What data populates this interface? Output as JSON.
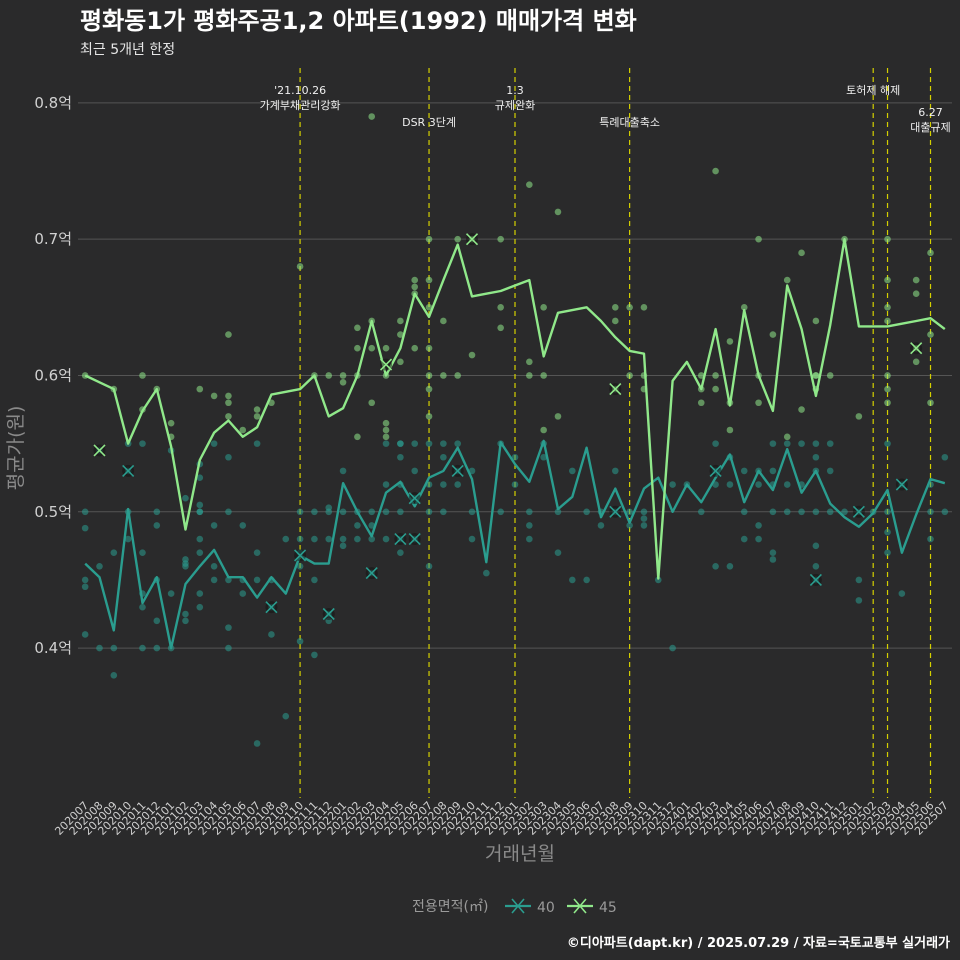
{
  "title": "평화동1가 평화주공1,2 아파트(1992) 매매가격 변화",
  "subtitle": "최근 5개년 한정",
  "caption": "©디아파트(dapt.kr) / 2025.07.29 / 자료=국토교통부 실거래가",
  "colors": {
    "s40": "#2a9d8f",
    "s45": "#90e88a",
    "event": "#d4d000",
    "grid": "#555555",
    "bg": "#2a2a2b"
  },
  "chart_data": {
    "type": "line",
    "x": [
      "202007",
      "202008",
      "202009",
      "202010",
      "202011",
      "202012",
      "202101",
      "202102",
      "202103",
      "202104",
      "202105",
      "202106",
      "202107",
      "202108",
      "202109",
      "202110",
      "202111",
      "202112",
      "202201",
      "202202",
      "202203",
      "202204",
      "202205",
      "202206",
      "202207",
      "202208",
      "202209",
      "202210",
      "202211",
      "202212",
      "202301",
      "202302",
      "202303",
      "202304",
      "202305",
      "202306",
      "202307",
      "202308",
      "202309",
      "202310",
      "202311",
      "202312",
      "202401",
      "202402",
      "202403",
      "202404",
      "202405",
      "202406",
      "202407",
      "202408",
      "202409",
      "202410",
      "202411",
      "202412",
      "202501",
      "202502",
      "202503",
      "202504",
      "202505",
      "202506",
      "202507"
    ],
    "xlabel": "거래년월",
    "ylabel": "평균가(원)",
    "ylim": [
      0.29,
      0.83
    ],
    "yticks": [
      0.4,
      0.5,
      0.6,
      0.7,
      0.8
    ],
    "ytick_labels": [
      "0.4억",
      "0.5억",
      "0.6억",
      "0.7억",
      "0.8억"
    ],
    "grid": true,
    "legend_title": "전용면적(㎡)",
    "legend_position": "bottom",
    "series": [
      {
        "name": "40",
        "color": "#2a9d8f",
        "values": [
          0.462,
          0.452,
          0.413,
          0.502,
          0.433,
          0.452,
          0.4,
          0.447,
          0.46,
          0.472,
          0.452,
          0.452,
          0.437,
          0.452,
          0.44,
          0.468,
          0.462,
          0.462,
          0.521,
          0.5,
          0.482,
          0.514,
          0.522,
          0.504,
          0.525,
          0.53,
          0.547,
          0.524,
          0.463,
          0.551,
          0.535,
          0.522,
          0.552,
          0.502,
          0.511,
          0.547,
          0.496,
          0.517,
          0.492,
          0.517,
          0.525,
          0.5,
          0.52,
          0.507,
          0.525,
          0.542,
          0.507,
          0.53,
          0.516,
          0.546,
          0.514,
          0.53,
          0.506,
          0.496,
          0.489,
          0.499,
          0.516,
          0.47,
          0.498,
          0.524,
          0.521
        ]
      },
      {
        "name": "45",
        "color": "#90e88a",
        "values": [
          0.6,
          0.595,
          0.59,
          0.55,
          0.574,
          0.59,
          0.548,
          0.487,
          0.538,
          0.558,
          0.567,
          0.555,
          0.562,
          0.586,
          0.588,
          0.59,
          0.6,
          0.57,
          0.576,
          0.6,
          0.64,
          0.6,
          0.62,
          0.66,
          0.643,
          0.67,
          0.696,
          0.658,
          0.66,
          0.662,
          0.666,
          0.67,
          0.614,
          0.646,
          0.648,
          0.65,
          0.64,
          0.628,
          0.618,
          0.616,
          0.451,
          0.596,
          0.61,
          0.59,
          0.634,
          0.578,
          0.648,
          0.6,
          0.574,
          0.666,
          0.634,
          0.585,
          0.637,
          0.7,
          0.636,
          0.636,
          0.636,
          0.638,
          0.64,
          0.642,
          0.634
        ]
      }
    ],
    "points": [
      {
        "x": "202007",
        "v": [
          0.5,
          0.488,
          0.45,
          0.445,
          0.41,
          0.6
        ]
      },
      {
        "x": "202008",
        "v": [
          0.46,
          0.4,
          0.545
        ]
      },
      {
        "x": "202009",
        "v": [
          0.47,
          0.4,
          0.38,
          0.59
        ]
      },
      {
        "x": "202010",
        "v": [
          0.53,
          0.5,
          0.48,
          0.55
        ]
      },
      {
        "x": "202011",
        "v": [
          0.47,
          0.44,
          0.43,
          0.4,
          0.6,
          0.575,
          0.55
        ]
      },
      {
        "x": "202012",
        "v": [
          0.5,
          0.49,
          0.45,
          0.42,
          0.4,
          0.59
        ]
      },
      {
        "x": "202101",
        "v": [
          0.44,
          0.4,
          0.565,
          0.555,
          0.545
        ]
      },
      {
        "x": "202102",
        "v": [
          0.46,
          0.425,
          0.42,
          0.51,
          0.465,
          0.462
        ]
      },
      {
        "x": "202103",
        "v": [
          0.5,
          0.48,
          0.47,
          0.44,
          0.43,
          0.59,
          0.535,
          0.525,
          0.505,
          0.5
        ]
      },
      {
        "x": "202104",
        "v": [
          0.49,
          0.46,
          0.45,
          0.585,
          0.55
        ]
      },
      {
        "x": "202105",
        "v": [
          0.5,
          0.45,
          0.415,
          0.4,
          0.63,
          0.585,
          0.58,
          0.57,
          0.54
        ]
      },
      {
        "x": "202106",
        "v": [
          0.49,
          0.45,
          0.44,
          0.56
        ]
      },
      {
        "x": "202107",
        "v": [
          0.47,
          0.45,
          0.33,
          0.575,
          0.57,
          0.55
        ]
      },
      {
        "x": "202108",
        "v": [
          0.45,
          0.43,
          0.41,
          0.58
        ]
      },
      {
        "x": "202109",
        "v": [
          0.48,
          0.35
        ]
      },
      {
        "x": "202110",
        "v": [
          0.5,
          0.48,
          0.47,
          0.46,
          0.405,
          0.68
        ]
      },
      {
        "x": "202111",
        "v": [
          0.5,
          0.48,
          0.45,
          0.395,
          0.6
        ]
      },
      {
        "x": "202112",
        "v": [
          0.5,
          0.48,
          0.425,
          0.42,
          0.6,
          0.503
        ]
      },
      {
        "x": "202201",
        "v": [
          0.5,
          0.48,
          0.475,
          0.6,
          0.595,
          0.53
        ]
      },
      {
        "x": "202202",
        "v": [
          0.5,
          0.49,
          0.48,
          0.635,
          0.62,
          0.6,
          0.555
        ]
      },
      {
        "x": "202203",
        "v": [
          0.5,
          0.49,
          0.48,
          0.455,
          0.79,
          0.64,
          0.62,
          0.58
        ]
      },
      {
        "x": "202204",
        "v": [
          0.56,
          0.55,
          0.52,
          0.5,
          0.48,
          0.62,
          0.6,
          0.565,
          0.555
        ]
      },
      {
        "x": "202205",
        "v": [
          0.55,
          0.52,
          0.5,
          0.48,
          0.47,
          0.64,
          0.63,
          0.61,
          0.55,
          0.54
        ]
      },
      {
        "x": "202206",
        "v": [
          0.55,
          0.53,
          0.51,
          0.48,
          0.67,
          0.665,
          0.66,
          0.62
        ]
      },
      {
        "x": "202207",
        "v": [
          0.59,
          0.55,
          0.52,
          0.5,
          0.46,
          0.7,
          0.67,
          0.65,
          0.62,
          0.6,
          0.57
        ]
      },
      {
        "x": "202208",
        "v": [
          0.55,
          0.54,
          0.52,
          0.5,
          0.64,
          0.6
        ]
      },
      {
        "x": "202209",
        "v": [
          0.6,
          0.55,
          0.53,
          0.52,
          0.7
        ]
      },
      {
        "x": "202210",
        "v": [
          0.53,
          0.5,
          0.48,
          0.7,
          0.615
        ]
      },
      {
        "x": "202211",
        "v": [
          0.455
        ]
      },
      {
        "x": "202212",
        "v": [
          0.55,
          0.5,
          0.7,
          0.65,
          0.635
        ]
      },
      {
        "x": "202301",
        "v": [
          0.54,
          0.52
        ]
      },
      {
        "x": "202302",
        "v": [
          0.61,
          0.5,
          0.49,
          0.48,
          0.74,
          0.6
        ]
      },
      {
        "x": "202303",
        "v": [
          0.6,
          0.55,
          0.54,
          0.65,
          0.56
        ]
      },
      {
        "x": "202304",
        "v": [
          0.5,
          0.47,
          0.72,
          0.57
        ]
      },
      {
        "x": "202305",
        "v": [
          0.53,
          0.45
        ]
      },
      {
        "x": "202306",
        "v": [
          0.5,
          0.45
        ]
      },
      {
        "x": "202307",
        "v": [
          0.5,
          0.49
        ]
      },
      {
        "x": "202308",
        "v": [
          0.53,
          0.5,
          0.65,
          0.64,
          0.59
        ]
      },
      {
        "x": "202309",
        "v": [
          0.5,
          0.49,
          0.65,
          0.6
        ]
      },
      {
        "x": "202310",
        "v": [
          0.5,
          0.495,
          0.49,
          0.65,
          0.6,
          0.59
        ]
      },
      {
        "x": "202311",
        "v": [
          0.45
        ]
      },
      {
        "x": "202312",
        "v": [
          0.52,
          0.4
        ]
      },
      {
        "x": "202401",
        "v": [
          0.52
        ]
      },
      {
        "x": "202402",
        "v": [
          0.5,
          0.6,
          0.59,
          0.58
        ]
      },
      {
        "x": "202403",
        "v": [
          0.55,
          0.53,
          0.52,
          0.46,
          0.75,
          0.6,
          0.59
        ]
      },
      {
        "x": "202404",
        "v": [
          0.56,
          0.54,
          0.52,
          0.46,
          0.625,
          0.58
        ]
      },
      {
        "x": "202405",
        "v": [
          0.53,
          0.5,
          0.48,
          0.65
        ]
      },
      {
        "x": "202406",
        "v": [
          0.53,
          0.52,
          0.49,
          0.48,
          0.7,
          0.6,
          0.58
        ]
      },
      {
        "x": "202407",
        "v": [
          0.55,
          0.52,
          0.5,
          0.47,
          0.465,
          0.63,
          0.53
        ]
      },
      {
        "x": "202408",
        "v": [
          0.555,
          0.55,
          0.52,
          0.5,
          0.67
        ]
      },
      {
        "x": "202409",
        "v": [
          0.55,
          0.52,
          0.5,
          0.69,
          0.575
        ]
      },
      {
        "x": "202410",
        "v": [
          0.6,
          0.55,
          0.54,
          0.53,
          0.5,
          0.475,
          0.46,
          0.45,
          0.64,
          0.6,
          0.59
        ]
      },
      {
        "x": "202411",
        "v": [
          0.5,
          0.55,
          0.53,
          0.6
        ]
      },
      {
        "x": "202412",
        "v": [
          0.5,
          0.7
        ]
      },
      {
        "x": "202501",
        "v": [
          0.57,
          0.5,
          0.45,
          0.435
        ]
      },
      {
        "x": "202502",
        "v": [
          0.5
        ]
      },
      {
        "x": "202503",
        "v": [
          0.55,
          0.5,
          0.485,
          0.47,
          0.7,
          0.67,
          0.65,
          0.64,
          0.6,
          0.59,
          0.58
        ]
      },
      {
        "x": "202504",
        "v": [
          0.52,
          0.44
        ]
      },
      {
        "x": "202505",
        "v": [
          0.62,
          0.67,
          0.66,
          0.61
        ]
      },
      {
        "x": "202506",
        "v": [
          0.52,
          0.5,
          0.48,
          0.69,
          0.63,
          0.58
        ]
      },
      {
        "x": "202507",
        "v": [
          0.54,
          0.5
        ]
      }
    ],
    "crosses": [
      {
        "x": "202008",
        "v": 0.545,
        "series": "45"
      },
      {
        "x": "202010",
        "v": 0.53,
        "series": "40"
      },
      {
        "x": "202108",
        "v": 0.43,
        "series": "40"
      },
      {
        "x": "202110",
        "v": 0.468,
        "series": "40"
      },
      {
        "x": "202112",
        "v": 0.425,
        "series": "40"
      },
      {
        "x": "202203",
        "v": 0.455,
        "series": "40"
      },
      {
        "x": "202204",
        "v": 0.608,
        "series": "45"
      },
      {
        "x": "202205",
        "v": 0.48,
        "series": "40"
      },
      {
        "x": "202206",
        "v": 0.48,
        "series": "40"
      },
      {
        "x": "202206",
        "v": 0.51,
        "series": "40"
      },
      {
        "x": "202209",
        "v": 0.53,
        "series": "40"
      },
      {
        "x": "202210",
        "v": 0.7,
        "series": "45"
      },
      {
        "x": "202308",
        "v": 0.5,
        "series": "40"
      },
      {
        "x": "202308",
        "v": 0.59,
        "series": "45"
      },
      {
        "x": "202403",
        "v": 0.53,
        "series": "40"
      },
      {
        "x": "202410",
        "v": 0.45,
        "series": "40"
      },
      {
        "x": "202501",
        "v": 0.5,
        "series": "40"
      },
      {
        "x": "202504",
        "v": 0.52,
        "series": "40"
      },
      {
        "x": "202505",
        "v": 0.62,
        "series": "45"
      }
    ],
    "events": [
      {
        "x": "202110",
        "lines": [
          "'21.10.26",
          "가계부채관리강화"
        ],
        "level": 1
      },
      {
        "x": "202207",
        "lines": [
          "DSR 3단계"
        ],
        "level": 2
      },
      {
        "x": "202301",
        "lines": [
          "1.3",
          "규제완화"
        ],
        "level": 1
      },
      {
        "x": "202309",
        "lines": [
          "특례대출축소"
        ],
        "level": 2
      },
      {
        "x": "202502",
        "lines": [
          "토허제 해제"
        ],
        "level": 1
      },
      {
        "x": "202503",
        "lines": [],
        "level": 0
      },
      {
        "x": "202506",
        "lines": [
          "6.27",
          "대출규제"
        ],
        "level": 3
      }
    ]
  }
}
